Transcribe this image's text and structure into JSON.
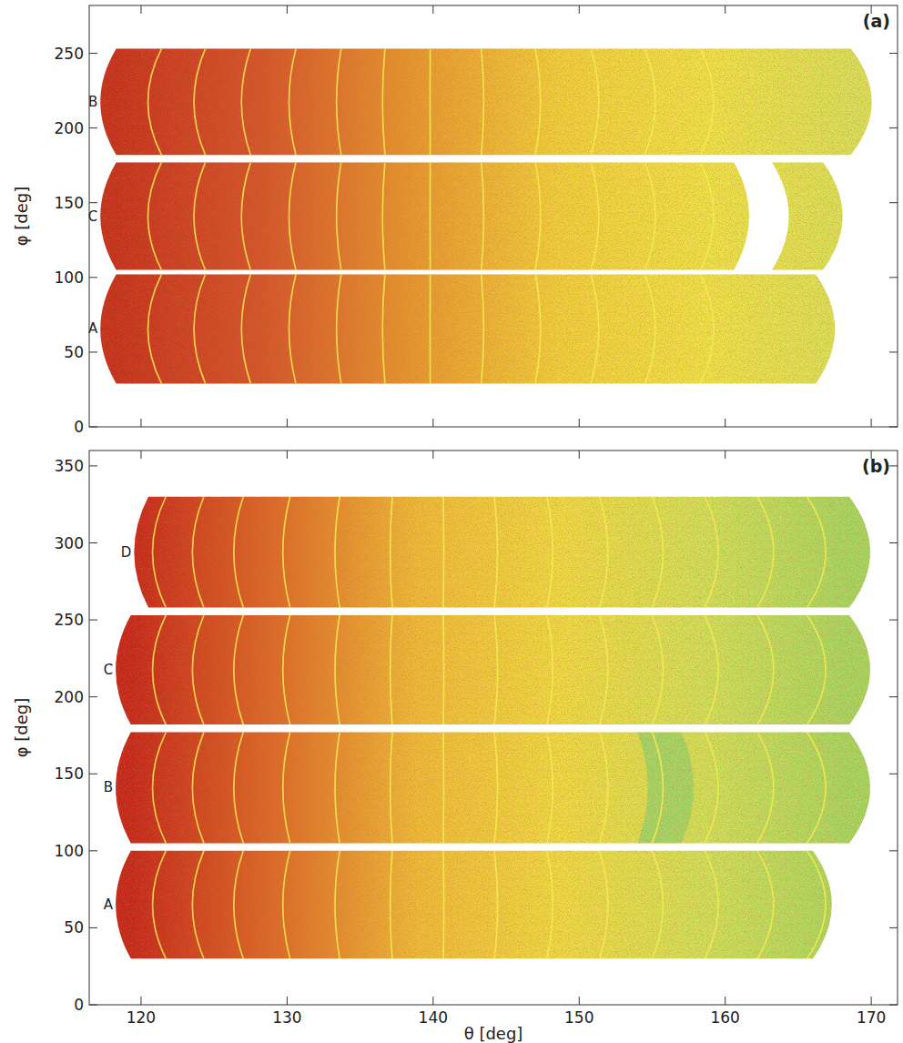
{
  "chart_data": [
    {
      "type": "heatmap",
      "panel_label": "(a)",
      "ylabel": "φ [deg]",
      "xlim": [
        116.45,
        171.8
      ],
      "ylim": [
        0,
        282
      ],
      "xticks": [
        120,
        130,
        140,
        150,
        160,
        170
      ],
      "yticks": [
        0,
        50,
        100,
        150,
        200,
        250
      ],
      "tick_labels": "y",
      "colors": [
        "#c4301c",
        "#d4542a",
        "#e6962e",
        "#f0d03c",
        "#eee448",
        "#d8e25a"
      ],
      "boundaries": [
        121.4,
        124.4,
        127.5,
        130.6,
        133.7,
        136.7,
        139.8,
        143.3,
        147.0,
        150.8,
        154.5,
        158.3
      ],
      "bands": [
        {
          "label": "B",
          "phi": [
            182,
            253
          ],
          "segments": [
            [
              118.3,
              168.6
            ]
          ]
        },
        {
          "label": "C",
          "phi": [
            105,
            177
          ],
          "segments": [
            [
              118.3,
              160.6
            ],
            [
              163.2,
              166.7
            ]
          ]
        },
        {
          "label": "A",
          "phi": [
            29,
            102
          ],
          "segments": [
            [
              118.3,
              166.2
            ]
          ]
        }
      ]
    },
    {
      "type": "heatmap",
      "panel_label": "(b)",
      "xlabel": "θ [deg]",
      "ylabel": "φ [deg]",
      "xlim": [
        116.45,
        171.8
      ],
      "ylim": [
        0,
        360
      ],
      "xticks": [
        120,
        130,
        140,
        150,
        160,
        170
      ],
      "yticks": [
        0,
        50,
        100,
        150,
        200,
        250,
        300,
        350
      ],
      "colors": [
        "#c4261a",
        "#dc6a28",
        "#eebc38",
        "#eedc44",
        "#cfe25a",
        "#a6d862"
      ],
      "boundaries": [
        121.7,
        124.3,
        127.0,
        130.2,
        133.6,
        137.2,
        140.7,
        144.2,
        147.8,
        151.4,
        155.0,
        158.6,
        162.2,
        165.6
      ],
      "bands": [
        {
          "label": "D",
          "phi": [
            258,
            330
          ],
          "segments": [
            [
              120.5,
              168.5
            ]
          ]
        },
        {
          "label": "C",
          "phi": [
            182,
            253
          ],
          "segments": [
            [
              119.3,
              168.5
            ]
          ]
        },
        {
          "label": "B",
          "phi": [
            105,
            177
          ],
          "segments": [
            [
              119.3,
              168.5
            ]
          ],
          "patches": [
            {
              "theta": [
                154.0,
                157.0
              ],
              "color": "#a4d866"
            }
          ]
        },
        {
          "label": "A",
          "phi": [
            30,
            100
          ],
          "segments": [
            [
              119.3,
              166.0
            ]
          ]
        }
      ]
    }
  ]
}
